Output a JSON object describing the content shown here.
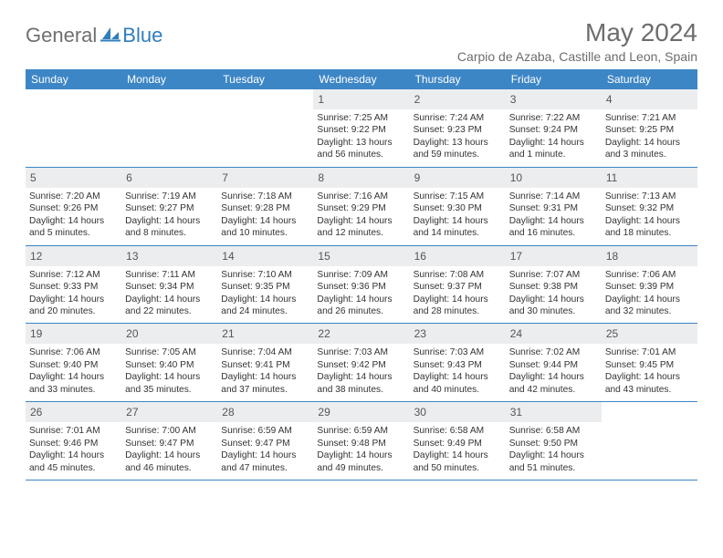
{
  "logo": {
    "text_gen": "General",
    "text_blue": "Blue",
    "icon_color": "#2f7ebc",
    "grey_color": "#6f6f6f"
  },
  "header": {
    "month_title": "May 2024",
    "location": "Carpio de Azaba, Castille and Leon, Spain"
  },
  "style": {
    "header_bg": "#3d86c6",
    "header_text": "#ffffff",
    "daynum_bg": "#ebedef",
    "daynum_text": "#555555",
    "body_text": "#333333",
    "row_border": "#3d86c6",
    "title_color": "#6d6d6d"
  },
  "days_of_week": [
    "Sunday",
    "Monday",
    "Tuesday",
    "Wednesday",
    "Thursday",
    "Friday",
    "Saturday"
  ],
  "weeks": [
    [
      null,
      null,
      null,
      {
        "n": "1",
        "sunrise": "7:25 AM",
        "sunset": "9:22 PM",
        "daylight": "13 hours and 56 minutes."
      },
      {
        "n": "2",
        "sunrise": "7:24 AM",
        "sunset": "9:23 PM",
        "daylight": "13 hours and 59 minutes."
      },
      {
        "n": "3",
        "sunrise": "7:22 AM",
        "sunset": "9:24 PM",
        "daylight": "14 hours and 1 minute."
      },
      {
        "n": "4",
        "sunrise": "7:21 AM",
        "sunset": "9:25 PM",
        "daylight": "14 hours and 3 minutes."
      }
    ],
    [
      {
        "n": "5",
        "sunrise": "7:20 AM",
        "sunset": "9:26 PM",
        "daylight": "14 hours and 5 minutes."
      },
      {
        "n": "6",
        "sunrise": "7:19 AM",
        "sunset": "9:27 PM",
        "daylight": "14 hours and 8 minutes."
      },
      {
        "n": "7",
        "sunrise": "7:18 AM",
        "sunset": "9:28 PM",
        "daylight": "14 hours and 10 minutes."
      },
      {
        "n": "8",
        "sunrise": "7:16 AM",
        "sunset": "9:29 PM",
        "daylight": "14 hours and 12 minutes."
      },
      {
        "n": "9",
        "sunrise": "7:15 AM",
        "sunset": "9:30 PM",
        "daylight": "14 hours and 14 minutes."
      },
      {
        "n": "10",
        "sunrise": "7:14 AM",
        "sunset": "9:31 PM",
        "daylight": "14 hours and 16 minutes."
      },
      {
        "n": "11",
        "sunrise": "7:13 AM",
        "sunset": "9:32 PM",
        "daylight": "14 hours and 18 minutes."
      }
    ],
    [
      {
        "n": "12",
        "sunrise": "7:12 AM",
        "sunset": "9:33 PM",
        "daylight": "14 hours and 20 minutes."
      },
      {
        "n": "13",
        "sunrise": "7:11 AM",
        "sunset": "9:34 PM",
        "daylight": "14 hours and 22 minutes."
      },
      {
        "n": "14",
        "sunrise": "7:10 AM",
        "sunset": "9:35 PM",
        "daylight": "14 hours and 24 minutes."
      },
      {
        "n": "15",
        "sunrise": "7:09 AM",
        "sunset": "9:36 PM",
        "daylight": "14 hours and 26 minutes."
      },
      {
        "n": "16",
        "sunrise": "7:08 AM",
        "sunset": "9:37 PM",
        "daylight": "14 hours and 28 minutes."
      },
      {
        "n": "17",
        "sunrise": "7:07 AM",
        "sunset": "9:38 PM",
        "daylight": "14 hours and 30 minutes."
      },
      {
        "n": "18",
        "sunrise": "7:06 AM",
        "sunset": "9:39 PM",
        "daylight": "14 hours and 32 minutes."
      }
    ],
    [
      {
        "n": "19",
        "sunrise": "7:06 AM",
        "sunset": "9:40 PM",
        "daylight": "14 hours and 33 minutes."
      },
      {
        "n": "20",
        "sunrise": "7:05 AM",
        "sunset": "9:40 PM",
        "daylight": "14 hours and 35 minutes."
      },
      {
        "n": "21",
        "sunrise": "7:04 AM",
        "sunset": "9:41 PM",
        "daylight": "14 hours and 37 minutes."
      },
      {
        "n": "22",
        "sunrise": "7:03 AM",
        "sunset": "9:42 PM",
        "daylight": "14 hours and 38 minutes."
      },
      {
        "n": "23",
        "sunrise": "7:03 AM",
        "sunset": "9:43 PM",
        "daylight": "14 hours and 40 minutes."
      },
      {
        "n": "24",
        "sunrise": "7:02 AM",
        "sunset": "9:44 PM",
        "daylight": "14 hours and 42 minutes."
      },
      {
        "n": "25",
        "sunrise": "7:01 AM",
        "sunset": "9:45 PM",
        "daylight": "14 hours and 43 minutes."
      }
    ],
    [
      {
        "n": "26",
        "sunrise": "7:01 AM",
        "sunset": "9:46 PM",
        "daylight": "14 hours and 45 minutes."
      },
      {
        "n": "27",
        "sunrise": "7:00 AM",
        "sunset": "9:47 PM",
        "daylight": "14 hours and 46 minutes."
      },
      {
        "n": "28",
        "sunrise": "6:59 AM",
        "sunset": "9:47 PM",
        "daylight": "14 hours and 47 minutes."
      },
      {
        "n": "29",
        "sunrise": "6:59 AM",
        "sunset": "9:48 PM",
        "daylight": "14 hours and 49 minutes."
      },
      {
        "n": "30",
        "sunrise": "6:58 AM",
        "sunset": "9:49 PM",
        "daylight": "14 hours and 50 minutes."
      },
      {
        "n": "31",
        "sunrise": "6:58 AM",
        "sunset": "9:50 PM",
        "daylight": "14 hours and 51 minutes."
      },
      null
    ]
  ],
  "labels": {
    "sunrise": "Sunrise:",
    "sunset": "Sunset:",
    "daylight": "Daylight:"
  }
}
